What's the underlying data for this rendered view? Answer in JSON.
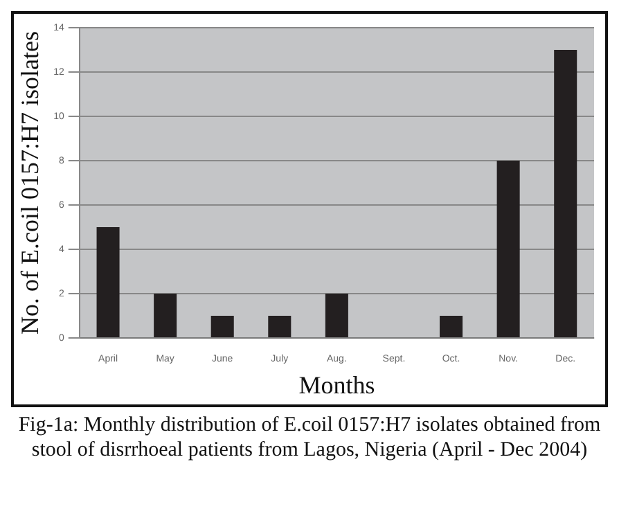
{
  "chart_data": {
    "type": "bar",
    "categories": [
      "April",
      "May",
      "June",
      "July",
      "Aug.",
      "Sept.",
      "Oct.",
      "Nov.",
      "Dec."
    ],
    "values": [
      5,
      2,
      1,
      1,
      2,
      0,
      1,
      8,
      13
    ],
    "color": "#231f20",
    "xlabel": "Months",
    "ylabel": "No. of E.coil 0157:H7 isolates",
    "ylim": [
      0,
      14
    ],
    "yticks": [
      0,
      2,
      4,
      6,
      8,
      10,
      12,
      14
    ],
    "grid": "y",
    "legend": false,
    "annotations": [
      "Fig-1a: Monthly distribution of E.coil 0157:H7 isolates obtained from stool of disrrhoeal patients from Lagos, Nigeria (April - Dec 2004)"
    ]
  }
}
